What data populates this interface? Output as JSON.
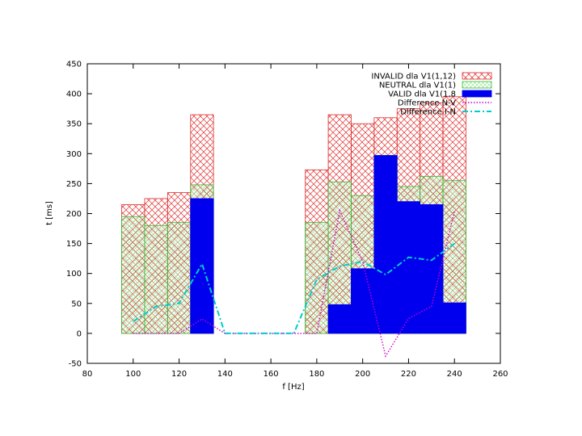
{
  "chart_data": {
    "type": "bar",
    "title": "",
    "xlabel": "f [Hz]",
    "ylabel": "t [ms]",
    "xlim": [
      80,
      260
    ],
    "ylim": [
      -50,
      450
    ],
    "xticks": [
      "80",
      "100",
      "120",
      "140",
      "160",
      "180",
      "200",
      "220",
      "240",
      "260"
    ],
    "yticks": [
      "-50",
      "0",
      "50",
      "100",
      "150",
      "200",
      "250",
      "300",
      "350",
      "400",
      "450"
    ],
    "grid": false,
    "legend_position": "top-right",
    "bin_width": 10,
    "colors": {
      "invalid": "#e03030",
      "neutral": "#30c030",
      "valid": "#0000ee",
      "diff_nv": "#cc00cc",
      "diff_in": "#00cccc"
    },
    "series": [
      {
        "name": "INVALID dla V1(1,12)",
        "kind": "bar-crosshatch",
        "x": [
          100,
          110,
          120,
          130,
          180,
          190,
          200,
          210,
          220,
          230,
          240
        ],
        "values": [
          215,
          225,
          235,
          365,
          273,
          365,
          350,
          360,
          375,
          385,
          395
        ]
      },
      {
        "name": "NEUTRAL dla V1(1)",
        "kind": "bar-dotted",
        "x": [
          100,
          110,
          120,
          130,
          180,
          190,
          200,
          210,
          220,
          230,
          240
        ],
        "values": [
          195,
          180,
          185,
          248,
          185,
          253,
          230,
          297,
          245,
          262,
          255
        ]
      },
      {
        "name": "VALID dla V1(1,8",
        "kind": "bar-solid",
        "x": [
          100,
          110,
          120,
          130,
          180,
          190,
          200,
          210,
          220,
          230,
          240
        ],
        "values": [
          0,
          0,
          0,
          225,
          0,
          48,
          108,
          297,
          220,
          215,
          51
        ]
      },
      {
        "name": "Difference N-V",
        "kind": "line-dotted",
        "x": [
          100,
          110,
          120,
          130,
          140,
          150,
          160,
          170,
          180,
          190,
          200,
          210,
          220,
          230,
          240
        ],
        "values": [
          0,
          0,
          0,
          24,
          0,
          0,
          0,
          0,
          0,
          205,
          120,
          -38,
          25,
          45,
          204
        ]
      },
      {
        "name": "Difference I-N",
        "kind": "line-dashdot",
        "x": [
          100,
          110,
          120,
          130,
          140,
          150,
          160,
          170,
          180,
          190,
          200,
          210,
          220,
          230,
          240
        ],
        "values": [
          20,
          45,
          50,
          116,
          0,
          0,
          0,
          0,
          90,
          112,
          120,
          98,
          127,
          122,
          150
        ]
      }
    ]
  }
}
